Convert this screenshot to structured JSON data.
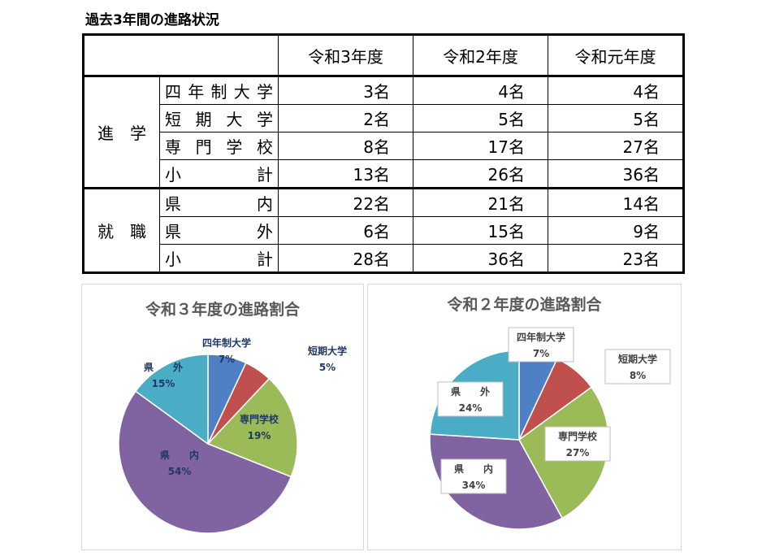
{
  "header": {
    "title": "過去3年間の進路状況"
  },
  "table": {
    "columns": [
      "令和3年度",
      "令和2年度",
      "令和元年度"
    ],
    "groups": [
      {
        "label": "進　学",
        "rows": [
          {
            "label": "四年制大学",
            "cells": [
              "3名",
              "4名",
              "4名"
            ]
          },
          {
            "label": "短期大学",
            "cells": [
              "2名",
              "5名",
              "5名"
            ]
          },
          {
            "label": "専門学校",
            "cells": [
              "8名",
              "17名",
              "27名"
            ]
          },
          {
            "label": "小　計",
            "cells": [
              "13名",
              "26名",
              "36名"
            ]
          }
        ]
      },
      {
        "label": "就　職",
        "rows": [
          {
            "label": "県　内",
            "cells": [
              "22名",
              "21名",
              "14名"
            ]
          },
          {
            "label": "県　外",
            "cells": [
              "6名",
              "15名",
              "9名"
            ]
          },
          {
            "label": "小　計",
            "cells": [
              "28名",
              "36名",
              "23名"
            ]
          }
        ]
      }
    ]
  },
  "chart_data": [
    {
      "type": "pie",
      "title": "令和３年度の進路割合",
      "categories": [
        "四年制大学",
        "短期大学",
        "専門学校",
        "県　　内",
        "県　　外"
      ],
      "values": [
        7,
        5,
        19,
        54,
        15
      ],
      "value_labels": [
        "7%",
        "5%",
        "19%",
        "54%",
        "15%"
      ],
      "colors": [
        "#4f7fc4",
        "#c0504d",
        "#9bbb59",
        "#8064a2",
        "#4bacc6"
      ]
    },
    {
      "type": "pie",
      "title": "令和２年度の進路割合",
      "categories": [
        "四年制大学",
        "短期大学",
        "専門学校",
        "県　　内",
        "県　　外"
      ],
      "values": [
        7,
        8,
        27,
        34,
        24
      ],
      "value_labels": [
        "7%",
        "8%",
        "27%",
        "34%",
        "24%"
      ],
      "colors": [
        "#4f7fc4",
        "#c0504d",
        "#9bbb59",
        "#8064a2",
        "#4bacc6"
      ]
    }
  ]
}
